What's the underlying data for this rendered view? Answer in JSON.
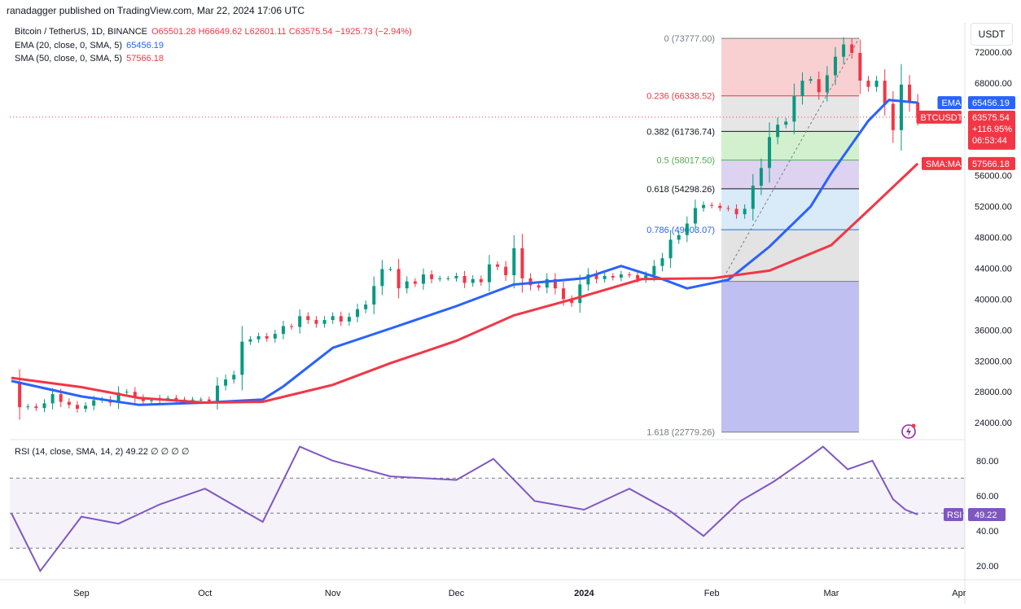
{
  "header": {
    "publisher": "ranadagger published on TradingView.com, Mar 22, 2024 17:06 UTC",
    "symbol": "Bitcoin / TetherUS, 1D, BINANCE",
    "ohlc": "O65501.28 H66649.62 L62601.11 C63575.54 −1925.73 (−2.94%)",
    "ema_label": "EMA (20, close, 0, SMA, 5)",
    "ema_value": "65456.19",
    "sma_label": "SMA (50, close, 0, SMA, 5)",
    "sma_value": "57566.18",
    "currency": "USDT"
  },
  "rsi_panel": {
    "label": "RSI (14, close, SMA, 14, 2)",
    "value": "49.22",
    "tail": "∅ ∅ ∅ ∅",
    "tag": "RSI",
    "ticks": [
      "80.00",
      "60.00",
      "40.00",
      "20.00"
    ]
  },
  "price_tags": {
    "ema": {
      "label": "EMA",
      "value": "65456.19",
      "color": "#2962ff"
    },
    "btc": {
      "label": "BTCUSDT",
      "value": "63575.54",
      "change": "+116.95%",
      "timer": "06:53:44",
      "color": "#f23645"
    },
    "sma": {
      "label": "SMA:MA",
      "value": "57566.18",
      "color": "#f23645"
    }
  },
  "fib_levels": [
    {
      "text": "0 (73777.00)",
      "color": "#787b86"
    },
    {
      "text": "0.236 (66338.52)",
      "color": "#f23645"
    },
    {
      "text": "0.382 (61736.74)",
      "color": "#131722"
    },
    {
      "text": "0.5 (58017.50)",
      "color": "#4caf50"
    },
    {
      "text": "0.618 (54298.26)",
      "color": "#131722"
    },
    {
      "text": "0.786 (49003.07)",
      "color": "#2962ff"
    },
    {
      "text": "1.618 (22779.26)",
      "color": "#787b86"
    }
  ],
  "chart_data": [
    {
      "type": "candlestick",
      "title": "Bitcoin / TetherUS, 1D, BINANCE",
      "xlabel": "",
      "ylabel": "",
      "x_ticks": [
        "Sep",
        "Oct",
        "Nov",
        "Dec",
        "2024",
        "Feb",
        "Mar",
        "Apr"
      ],
      "y_ticks": [
        "72000.00",
        "68000.00",
        "64000.00",
        "60000.00",
        "56000.00",
        "52000.00",
        "48000.00",
        "44000.00",
        "40000.00",
        "36000.00",
        "32000.00",
        "28000.00",
        "24000.00"
      ],
      "ylim": [
        21800,
        75800
      ],
      "series": [
        {
          "name": "EMA",
          "color": "#2962ff",
          "x": [
            "Aug 15",
            "Sep 1",
            "Sep 15",
            "Oct 1",
            "Oct 15",
            "Oct 20",
            "Nov 1",
            "Nov 15",
            "Dec 1",
            "Dec 15",
            "Jan 1",
            "Jan 10",
            "Jan 20",
            "Jan 26",
            "Feb 5",
            "Feb 15",
            "Feb 25",
            "Mar 1",
            "Mar 10",
            "Mar 15",
            "Mar 22"
          ],
          "values": [
            29400,
            27400,
            26300,
            26600,
            27000,
            28700,
            33700,
            36200,
            39100,
            41900,
            42700,
            44300,
            42600,
            41400,
            42500,
            46800,
            52000,
            56300,
            63100,
            65800,
            65456
          ]
        },
        {
          "name": "SMA:MA",
          "color": "#f23645",
          "x": [
            "Aug 15",
            "Sep 1",
            "Sep 15",
            "Oct 1",
            "Oct 15",
            "Nov 1",
            "Nov 15",
            "Dec 1",
            "Dec 15",
            "Jan 1",
            "Jan 15",
            "Feb 1",
            "Feb 15",
            "Mar 1",
            "Mar 10",
            "Mar 22"
          ],
          "values": [
            29800,
            28600,
            27200,
            26600,
            26700,
            28900,
            31700,
            34600,
            37900,
            40400,
            42600,
            42700,
            43700,
            47000,
            51500,
            57566
          ]
        }
      ],
      "candles": {
        "x_start": "Aug 15, 2023",
        "x_end": "Mar 22, 2024",
        "close_path": [
          29300,
          26000,
          26100,
          25900,
          26500,
          27700,
          26700,
          26300,
          25800,
          26200,
          26900,
          27000,
          26600,
          27900,
          28000,
          27200,
          26800,
          26900,
          27200,
          27200,
          27000,
          26900,
          27000,
          27000,
          26800,
          28800,
          29600,
          30200,
          34500,
          34800,
          35200,
          34900,
          35500,
          36500,
          36400,
          37800,
          37300,
          36800,
          37300,
          37800,
          37100,
          37700,
          38700,
          39300,
          41700,
          43900,
          43900,
          41400,
          42300,
          42000,
          43200,
          42600,
          42700,
          42700,
          43000,
          42100,
          42600,
          42200,
          44500,
          44200,
          43100,
          46600,
          42700,
          41800,
          41500,
          42600,
          41400,
          40000,
          39500,
          41900,
          43200,
          42600,
          43000,
          42800,
          43200,
          43100,
          42600,
          43100,
          44300,
          45300,
          47700,
          48300,
          49800,
          51800,
          52200,
          52100,
          51800,
          51700,
          51000,
          51700,
          54700,
          57000,
          61000,
          62600,
          63000,
          66300,
          68300,
          68500,
          66800,
          69000,
          71400,
          73000,
          71900,
          68300,
          67500,
          68300,
          65300,
          61900,
          67800,
          65500,
          63576
        ]
      }
    },
    {
      "type": "line",
      "title": "RSI (14, close, SMA, 14, 2)",
      "xlabel": "",
      "ylabel": "",
      "ylim": [
        12,
        92
      ],
      "series": [
        {
          "name": "RSI",
          "color": "#7e57c2",
          "x": [
            "Aug 15",
            "Aug 22",
            "Sep 1",
            "Sep 10",
            "Sep 20",
            "Oct 1",
            "Oct 15",
            "Oct 24",
            "Nov 1",
            "Nov 15",
            "Dec 1",
            "Dec 10",
            "Dec 20",
            "Jan 1",
            "Jan 12",
            "Jan 22",
            "Jan 30",
            "Feb 8",
            "Feb 16",
            "Feb 24",
            "Feb 28",
            "Mar 5",
            "Mar 11",
            "Mar 16",
            "Mar 19",
            "Mar 22"
          ],
          "values": [
            50,
            17,
            48,
            44,
            55,
            64,
            45,
            88,
            80,
            71,
            69,
            81,
            57,
            52,
            64,
            51,
            37,
            57,
            68,
            81,
            88,
            75,
            80,
            58,
            52,
            49.22
          ]
        }
      ],
      "ticks": [
        "80.00",
        "60.00",
        "40.00",
        "20.00"
      ]
    }
  ]
}
